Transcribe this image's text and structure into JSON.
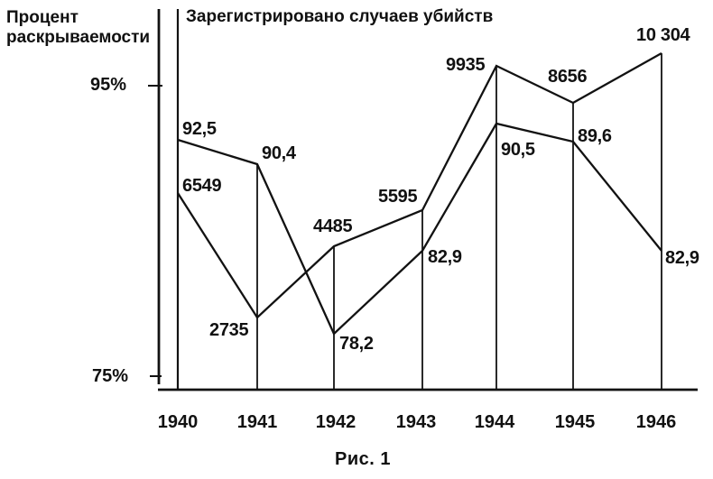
{
  "chart_data": {
    "type": "line",
    "title_top": "Зарегистрировано случаев убийств",
    "title_left": "Процент\nраскрываемости",
    "caption": "Рис. 1",
    "categories": [
      "1940",
      "1941",
      "1942",
      "1943",
      "1944",
      "1945",
      "1946"
    ],
    "yticks": [
      "95%",
      "75%"
    ],
    "ylim_percent": [
      75,
      95
    ],
    "grid": false,
    "legend": "inline-titles",
    "line_color": "#121212",
    "series": [
      {
        "name": "Зарегистрировано случаев убийств",
        "unit": "cases",
        "values": [
          6549,
          2735,
          4485,
          5595,
          9935,
          8656,
          10304
        ],
        "labels": [
          "6549",
          "2735",
          "4485",
          "5595",
          "9935",
          "8656",
          "10 304"
        ]
      },
      {
        "name": "Процент раскрываемости",
        "unit": "%",
        "values": [
          92.5,
          90.4,
          78.2,
          82.9,
          90.5,
          89.6,
          82.9
        ],
        "labels": [
          "92,5",
          "90,4",
          "78,2",
          "82,9",
          "90,5",
          "89,6",
          "82,9"
        ]
      }
    ]
  }
}
